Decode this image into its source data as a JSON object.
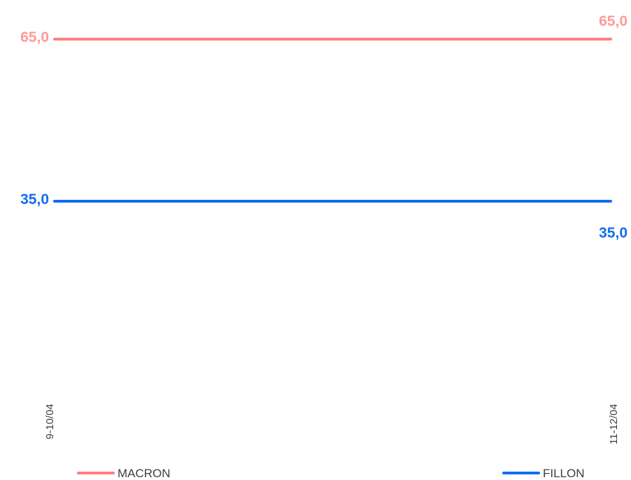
{
  "chart_data": {
    "type": "line",
    "categories": [
      "9-10/04",
      "11-12/04"
    ],
    "series": [
      {
        "name": "MACRON",
        "values": [
          65.0,
          65.0
        ],
        "labels": [
          "65,0",
          "65,0"
        ],
        "color": "#FF7F7F",
        "label_color": "#FF9A9A"
      },
      {
        "name": "FILLON",
        "values": [
          35.0,
          35.0
        ],
        "labels": [
          "35,0",
          "35,0"
        ],
        "color": "#0F6EF0",
        "label_color": "#0F6EF0"
      }
    ],
    "grid": false,
    "legend_position": "bottom"
  }
}
